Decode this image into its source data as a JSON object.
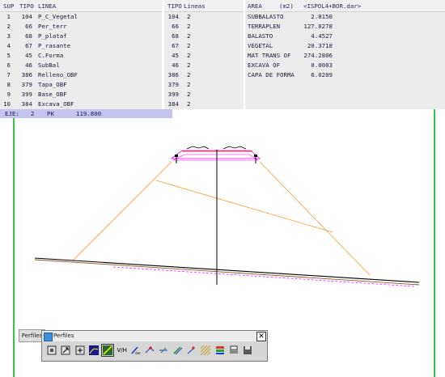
{
  "table1": {
    "headers": [
      "SUP",
      "TIPO",
      "LINEA"
    ],
    "rows": [
      [
        "1",
        "104",
        "P_C_Vegetal"
      ],
      [
        "2",
        "66",
        "Per_terr"
      ],
      [
        "3",
        "68",
        "P_plataf"
      ],
      [
        "4",
        "67",
        "P_rasante"
      ],
      [
        "5",
        "45",
        "C.Forma"
      ],
      [
        "6",
        "46",
        "SubBal"
      ],
      [
        "7",
        "386",
        "Relleno_OBF"
      ],
      [
        "8",
        "379",
        "Tapa_OBF"
      ],
      [
        "9",
        "399",
        "Base_OBF"
      ],
      [
        "10",
        "384",
        "Excava_OBF"
      ]
    ]
  },
  "table2": {
    "headers": [
      "TIPO",
      "Lineas"
    ],
    "rows": [
      [
        "104",
        "2"
      ],
      [
        "66",
        "2"
      ],
      [
        "68",
        "2"
      ],
      [
        "67",
        "2"
      ],
      [
        "45",
        "2"
      ],
      [
        "46",
        "2"
      ],
      [
        "386",
        "2"
      ],
      [
        "379",
        "2"
      ],
      [
        "399",
        "2"
      ],
      [
        "384",
        "2"
      ]
    ]
  },
  "table3": {
    "headers": [
      "AREA",
      "(m2)",
      "<ISPOL4+BOR.dar>"
    ],
    "rows": [
      [
        "SUBBALASTO",
        "2.8150"
      ],
      [
        "TERRAPLEN",
        "127.0278"
      ],
      [
        "BALASTO",
        "4.4527"
      ],
      [
        "VEGETAL",
        "20.3718"
      ],
      [
        "MAT TRANS OF",
        "274.2806"
      ],
      [
        "EXCAVA OF",
        "0.0003"
      ],
      [
        "CAPA DE FORMA",
        "6.0209"
      ]
    ]
  },
  "eje": {
    "label": "EJE:",
    "value": "2",
    "pk_label": "PK",
    "pk_value": "119.800"
  },
  "toolbar": {
    "tab_label": "Perfiles",
    "title": "Perfiles",
    "close_glyph": "✕",
    "vh_label": "V/H",
    "buttons": [
      "zoom-window-icon",
      "pan-icon",
      "zoom-extents-icon",
      "draw-profile-icon",
      "select-line-icon",
      "vh-scale-icon",
      "dar-icon",
      "insert-vertex-icon",
      "edit-line-icon",
      "offset-icon",
      "insert-point-icon",
      "hatch-icon",
      "layers-icon",
      "print-icon",
      "save-icon"
    ],
    "selected_index": 4
  },
  "colors": {
    "grid_green": "#2ecc40",
    "slope_orange": "#ff9933",
    "terrain_black": "#000000",
    "terrain_brown": "#8b5a2b",
    "subgrade_magenta": "#ff00ff",
    "eje_highlight": "#c4c4f0"
  }
}
